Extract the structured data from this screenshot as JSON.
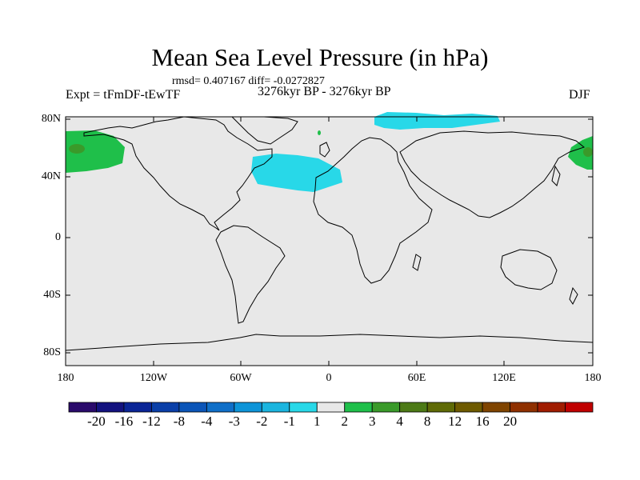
{
  "title": "Mean Sea Level Pressure (in hPa)",
  "stats": "rmsd= 0.407167 diff= -0.0272827",
  "left_label": "Expt = tFmDF-tEwTF",
  "center_label": "3276kyr BP - 3276kyr BP",
  "right_label": "DJF",
  "lat_labels": [
    "80N",
    "40N",
    "0",
    "40S",
    "80S"
  ],
  "lon_labels": [
    "180",
    "120W",
    "60W",
    "0",
    "60E",
    "120E",
    "180"
  ],
  "colorbar": {
    "colors": [
      "#2a0a6b",
      "#13127f",
      "#0a2596",
      "#0a3fa8",
      "#0b55b8",
      "#0f6fc8",
      "#0d94d8",
      "#1bb5df",
      "#28d8e8",
      "#e8e8e8",
      "#1fbf4a",
      "#3a9a2a",
      "#4c7a16",
      "#5f6a06",
      "#6e5a00",
      "#7f4400",
      "#8f3000",
      "#a01c00",
      "#c00000"
    ],
    "labels": [
      "-20",
      "-16",
      "-12",
      "-8",
      "-4",
      "-3",
      "-2",
      "-1",
      "1",
      "2",
      "3",
      "4",
      "8",
      "12",
      "16",
      "20"
    ]
  },
  "colors": {
    "background": "#e8e8e8",
    "positive_fill": "#1fbf4a",
    "negative_fill": "#28d8e8",
    "coast": "#000000"
  }
}
